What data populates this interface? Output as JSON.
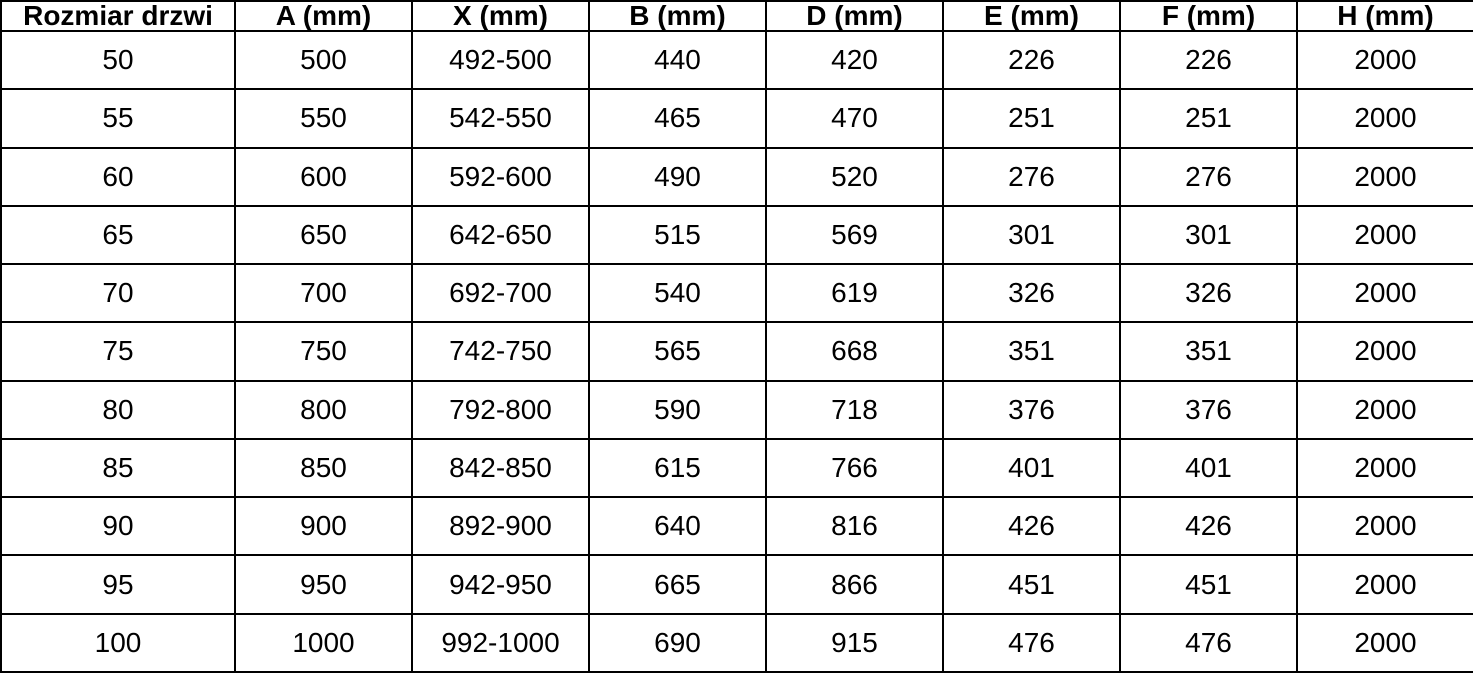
{
  "table": {
    "headers": [
      "Rozmiar drzwi",
      "A (mm)",
      "X (mm)",
      "B (mm)",
      "D (mm)",
      "E (mm)",
      "F (mm)",
      "H (mm)"
    ],
    "rows": [
      [
        "50",
        "500",
        "492-500",
        "440",
        "420",
        "226",
        "226",
        "2000"
      ],
      [
        "55",
        "550",
        "542-550",
        "465",
        "470",
        "251",
        "251",
        "2000"
      ],
      [
        "60",
        "600",
        "592-600",
        "490",
        "520",
        "276",
        "276",
        "2000"
      ],
      [
        "65",
        "650",
        "642-650",
        "515",
        "569",
        "301",
        "301",
        "2000"
      ],
      [
        "70",
        "700",
        "692-700",
        "540",
        "619",
        "326",
        "326",
        "2000"
      ],
      [
        "75",
        "750",
        "742-750",
        "565",
        "668",
        "351",
        "351",
        "2000"
      ],
      [
        "80",
        "800",
        "792-800",
        "590",
        "718",
        "376",
        "376",
        "2000"
      ],
      [
        "85",
        "850",
        "842-850",
        "615",
        "766",
        "401",
        "401",
        "2000"
      ],
      [
        "90",
        "900",
        "892-900",
        "640",
        "816",
        "426",
        "426",
        "2000"
      ],
      [
        "95",
        "950",
        "942-950",
        "665",
        "866",
        "451",
        "451",
        "2000"
      ],
      [
        "100",
        "1000",
        "992-1000",
        "690",
        "915",
        "476",
        "476",
        "2000"
      ]
    ],
    "colors": {
      "border": "#000000",
      "background": "#ffffff",
      "text": "#000000"
    }
  }
}
